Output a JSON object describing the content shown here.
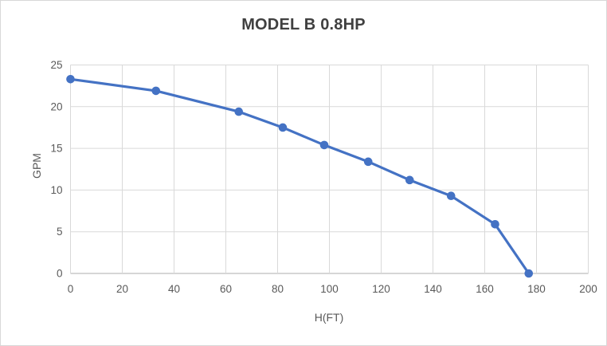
{
  "chart_data": {
    "type": "line",
    "title": "MODEL B 0.8HP",
    "xlabel": "H(FT)",
    "ylabel": "GPM",
    "x": [
      0,
      33,
      65,
      82,
      98,
      115,
      131,
      147,
      164,
      177
    ],
    "y": [
      23.3,
      21.9,
      19.4,
      17.5,
      15.4,
      13.4,
      11.2,
      9.3,
      5.9,
      0
    ],
    "series_name": "MODEL B 0.8HP",
    "xlim": [
      0,
      200
    ],
    "ylim": [
      0,
      25
    ],
    "xticks": [
      0,
      20,
      40,
      60,
      80,
      100,
      120,
      140,
      160,
      180,
      200
    ],
    "yticks": [
      0,
      5,
      10,
      15,
      20,
      25
    ],
    "grid": true,
    "legend": false,
    "marker": "circle",
    "line_color": "#4472C4",
    "gridline_color": "#D9D9D9",
    "axis_line_color": "#C9C9C9",
    "tick_text_color": "#595959",
    "title_color": "#404040"
  }
}
